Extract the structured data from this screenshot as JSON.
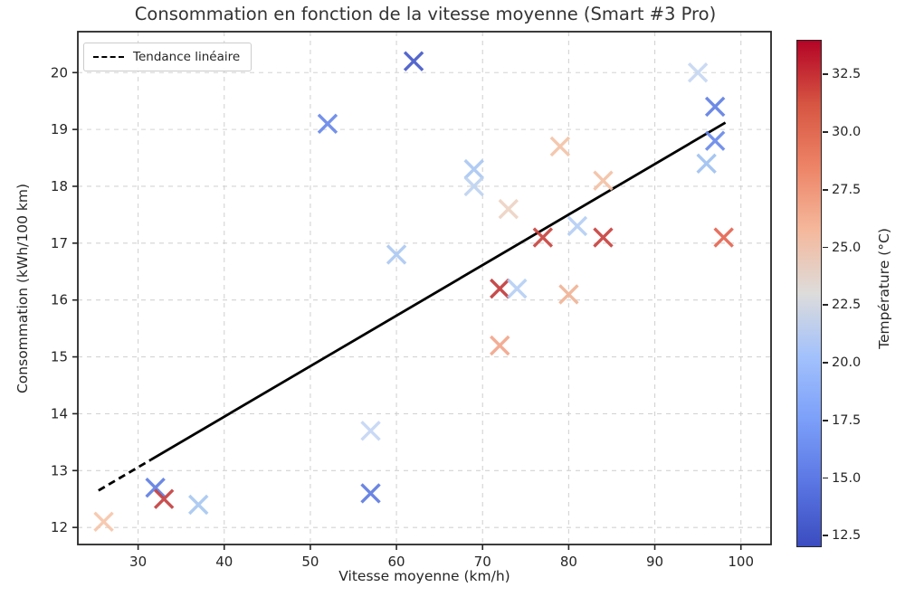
{
  "chart_data": {
    "type": "scatter",
    "title": "Consommation en fonction de la vitesse moyenne (Smart #3 Pro)",
    "xlabel": "Vitesse moyenne (km/h)",
    "ylabel": "Consommation (kWh/100 km)",
    "xlim": [
      23.0,
      103.5
    ],
    "ylim": [
      11.7,
      20.72
    ],
    "xticks": [
      30,
      40,
      50,
      60,
      70,
      80,
      90,
      100
    ],
    "yticks": [
      12,
      13,
      14,
      15,
      16,
      17,
      18,
      19,
      20
    ],
    "grid": true,
    "grid_style": "dashed",
    "legend": {
      "label": "Tendance linéaire",
      "position": "upper-left",
      "line_style": "dashed",
      "line_color": "#000000"
    },
    "points": [
      {
        "x": 26,
        "y": 12.1,
        "temp": 26.0,
        "color": "#f6c4a9"
      },
      {
        "x": 32,
        "y": 12.7,
        "temp": 15.0,
        "color": "#5d7ce2"
      },
      {
        "x": 33,
        "y": 12.5,
        "temp": 32.5,
        "color": "#c43c3d"
      },
      {
        "x": 37,
        "y": 12.4,
        "temp": 20.0,
        "color": "#a6c6f1"
      },
      {
        "x": 52,
        "y": 19.1,
        "temp": 16.0,
        "color": "#6585e9"
      },
      {
        "x": 57,
        "y": 13.7,
        "temp": 22.0,
        "color": "#c3d5f4"
      },
      {
        "x": 57,
        "y": 12.6,
        "temp": 15.0,
        "color": "#5b79e0"
      },
      {
        "x": 60,
        "y": 16.8,
        "temp": 20.5,
        "color": "#abc8f2"
      },
      {
        "x": 62,
        "y": 20.2,
        "temp": 13.0,
        "color": "#4257c9"
      },
      {
        "x": 69,
        "y": 18.3,
        "temp": 20.0,
        "color": "#a8c6f2"
      },
      {
        "x": 69,
        "y": 18.0,
        "temp": 21.5,
        "color": "#bdd1f0"
      },
      {
        "x": 73,
        "y": 17.6,
        "temp": 25.0,
        "color": "#ecd2c2"
      },
      {
        "x": 72,
        "y": 16.2,
        "temp": 33.0,
        "color": "#c23739"
      },
      {
        "x": 74,
        "y": 16.2,
        "temp": 21.0,
        "color": "#b5cef4"
      },
      {
        "x": 72,
        "y": 15.2,
        "temp": 28.5,
        "color": "#f2a488"
      },
      {
        "x": 77,
        "y": 17.1,
        "temp": 32.5,
        "color": "#c7413c"
      },
      {
        "x": 79,
        "y": 18.7,
        "temp": 26.5,
        "color": "#f3c2a5"
      },
      {
        "x": 80,
        "y": 16.1,
        "temp": 27.5,
        "color": "#f0b193"
      },
      {
        "x": 81,
        "y": 17.3,
        "temp": 21.0,
        "color": "#b3cdf4"
      },
      {
        "x": 84,
        "y": 18.1,
        "temp": 26.5,
        "color": "#f3c0a3"
      },
      {
        "x": 84,
        "y": 17.1,
        "temp": 32.5,
        "color": "#c63e3b"
      },
      {
        "x": 95,
        "y": 20.0,
        "temp": 22.0,
        "color": "#c5d6f2"
      },
      {
        "x": 97,
        "y": 19.4,
        "temp": 15.0,
        "color": "#5e7de3"
      },
      {
        "x": 97,
        "y": 18.8,
        "temp": 16.0,
        "color": "#6687ea"
      },
      {
        "x": 96,
        "y": 18.4,
        "temp": 19.5,
        "color": "#9dc0f1"
      },
      {
        "x": 98,
        "y": 17.1,
        "temp": 31.0,
        "color": "#e4624e"
      }
    ],
    "trend": {
      "x_start": 25.4,
      "y_start": 12.65,
      "x_end": 98.2,
      "y_end": 19.12,
      "dashed_until_x": 31.5,
      "color": "#000000"
    },
    "colorbar": {
      "label": "Température (°C)",
      "vmin": 12.0,
      "vmax": 34.0,
      "ticks": [
        12.5,
        15.0,
        17.5,
        20.0,
        22.5,
        25.0,
        27.5,
        30.0,
        32.5
      ],
      "tick_labels": [
        "12.5",
        "15.0",
        "17.5",
        "20.0",
        "22.5",
        "25.0",
        "27.5",
        "30.0",
        "32.5"
      ],
      "colormap": "coolwarm",
      "stops": [
        {
          "t": 0.0,
          "c": "#3b4cc0"
        },
        {
          "t": 0.125,
          "c": "#5a76e3"
        },
        {
          "t": 0.25,
          "c": "#7c9ff9"
        },
        {
          "t": 0.375,
          "c": "#a2c1fc"
        },
        {
          "t": 0.5,
          "c": "#dddcdb"
        },
        {
          "t": 0.625,
          "c": "#f5b89c"
        },
        {
          "t": 0.75,
          "c": "#ed8467"
        },
        {
          "t": 0.875,
          "c": "#d65542"
        },
        {
          "t": 1.0,
          "c": "#b40426"
        }
      ]
    }
  }
}
